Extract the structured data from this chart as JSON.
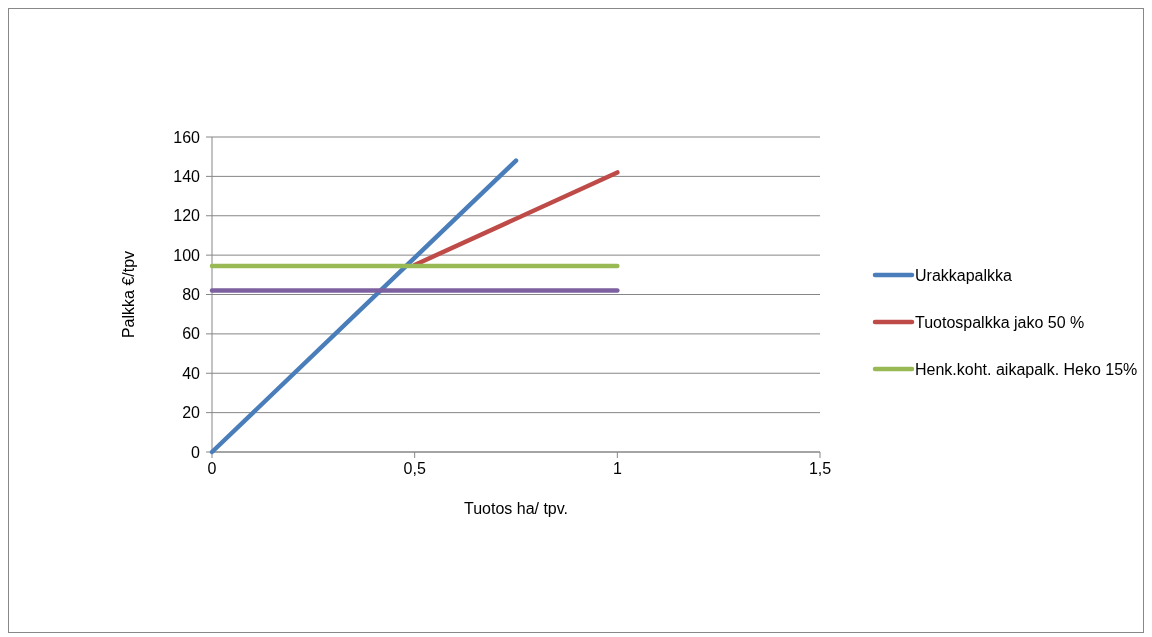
{
  "chart_data": {
    "type": "line",
    "xlabel": "Tuotos ha/ tpv.",
    "ylabel": "Palkka €/tpv",
    "xlim": [
      0,
      1.5
    ],
    "xticks": [
      0,
      {
        "value": 0.5,
        "label": "0,5"
      },
      1,
      {
        "value": 1.5,
        "label": "1,5"
      }
    ],
    "ylim": [
      0,
      160
    ],
    "yticks": [
      0,
      20,
      40,
      60,
      80,
      100,
      120,
      140,
      160
    ],
    "grid": "y",
    "legend": "right",
    "marker": "none",
    "line_style": "solid",
    "series": [
      {
        "name": "Urakkapalkka",
        "color": "#4a7ebb",
        "x": [
          0,
          0.75
        ],
        "values": [
          0,
          148
        ]
      },
      {
        "name": "Tuotospalkka jako 50 %",
        "color": "#be4b48",
        "x": [
          0.5,
          1
        ],
        "values": [
          95,
          142
        ]
      },
      {
        "name": "Henk.koht. aikapalk. Heko 15%",
        "color": "#98b954",
        "x": [
          0,
          1
        ],
        "values": [
          94.5,
          94.5
        ]
      },
      {
        "color": "#7d60a0",
        "x": [
          0,
          1
        ],
        "values": [
          82,
          82
        ]
      }
    ]
  }
}
